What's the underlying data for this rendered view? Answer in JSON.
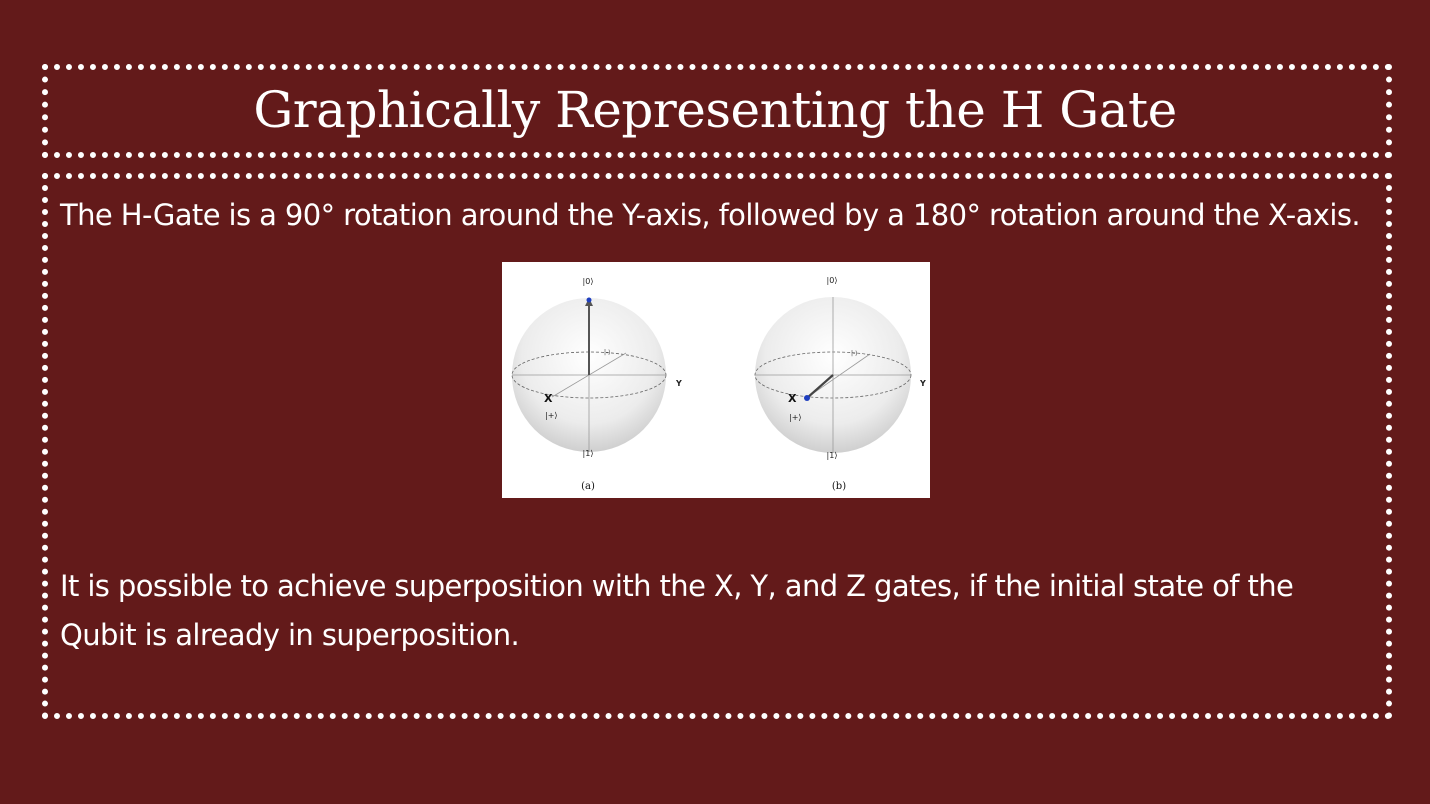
{
  "slide": {
    "title": "Graphically Representing the H Gate",
    "line1": "The H-Gate is a 90° rotation around the Y-axis, followed by a 180° rotation around the X-axis.",
    "line2": "It is possible to achieve superposition with the X, Y, and Z gates, if the initial state of the Qubit is already in superposition."
  },
  "figure": {
    "spheres": [
      {
        "caption": "(a)",
        "top_label": "|0⟩",
        "bottom_label": "|1⟩",
        "minus_label": "|-⟩",
        "plus_label": "|+⟩",
        "x_label": "X",
        "y_label": "Y"
      },
      {
        "caption": "(b)",
        "top_label": "|0⟩",
        "bottom_label": "|1⟩",
        "minus_label": "|-⟩",
        "plus_label": "|+⟩",
        "x_label": "X",
        "y_label": "Y"
      }
    ]
  },
  "colors": {
    "background": "#631a1a",
    "border": "#ffffff",
    "text": "#ffffff",
    "state_dot": "#1f3fbf"
  }
}
